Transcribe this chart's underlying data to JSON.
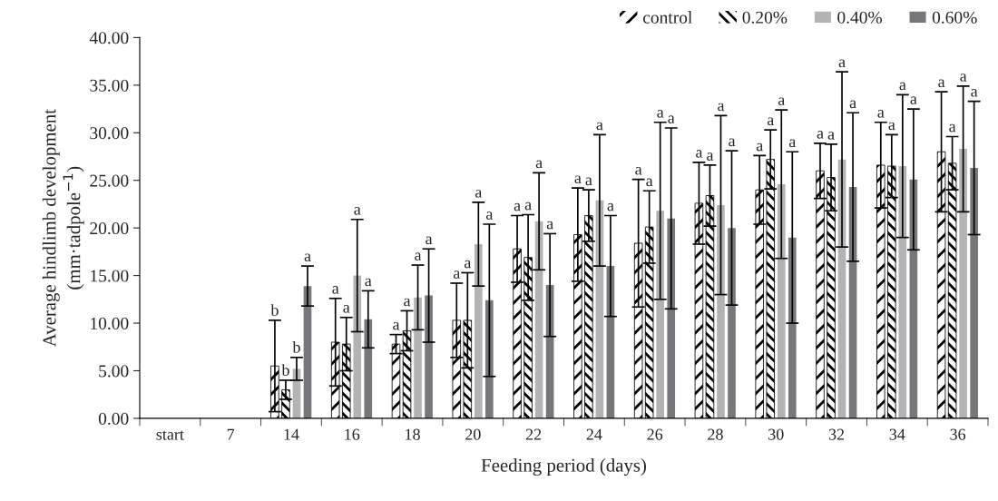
{
  "chart_data": {
    "type": "bar",
    "xlabel": "Feeding period (days)",
    "ylabel": "Average hindlimb development\n(mm·tadpole$^{−1}$)",
    "categories": [
      "start",
      "7",
      "14",
      "16",
      "18",
      "20",
      "22",
      "24",
      "26",
      "28",
      "30",
      "32",
      "34",
      "36"
    ],
    "series": [
      {
        "name": "control",
        "color": "#000000",
        "values": [
          null,
          null,
          5.5,
          8.0,
          7.8,
          10.3,
          17.8,
          19.3,
          18.4,
          22.6,
          24.0,
          26.0,
          26.6,
          28.0
        ],
        "errors": [
          null,
          null,
          4.8,
          4.6,
          1.0,
          3.9,
          3.5,
          4.9,
          6.7,
          4.3,
          3.6,
          2.9,
          4.5,
          6.3
        ]
      },
      {
        "name": "0.20%",
        "color": "#000000",
        "values": [
          null,
          null,
          3.0,
          7.8,
          9.2,
          10.3,
          16.9,
          21.3,
          20.1,
          23.4,
          27.2,
          25.3,
          26.5,
          26.8
        ],
        "errors": [
          null,
          null,
          1.0,
          2.8,
          2.1,
          5.0,
          4.5,
          2.7,
          3.8,
          3.2,
          3.1,
          3.5,
          3.3,
          2.8
        ]
      },
      {
        "name": "0.40%",
        "color": "#b3b3b5",
        "values": [
          null,
          null,
          5.2,
          15.0,
          12.7,
          18.3,
          20.7,
          22.9,
          21.8,
          22.4,
          24.6,
          27.2,
          26.5,
          28.3
        ],
        "errors": [
          null,
          null,
          1.2,
          5.9,
          3.4,
          4.4,
          5.1,
          6.9,
          9.3,
          9.4,
          7.8,
          9.2,
          7.5,
          6.6
        ]
      },
      {
        "name": "0.60%",
        "color": "#77777b",
        "values": [
          null,
          null,
          13.9,
          10.4,
          12.9,
          12.4,
          14.0,
          16.0,
          21.0,
          20.0,
          19.0,
          24.3,
          25.1,
          26.3
        ],
        "errors": [
          null,
          null,
          2.1,
          3.0,
          4.9,
          8.0,
          5.4,
          5.3,
          9.5,
          8.1,
          9.0,
          7.8,
          7.4,
          7.0
        ]
      }
    ],
    "annotations": [
      "b",
      "b",
      "b",
      "a",
      "a",
      "a",
      "a",
      "a",
      "a",
      "a",
      "a",
      "a",
      "a",
      "a",
      "a",
      "a",
      "a",
      "a",
      "a",
      "a",
      "a",
      "a",
      "a",
      "a",
      "a",
      "a",
      "a",
      "a",
      "a",
      "a",
      "a",
      "a",
      "a",
      "a",
      "a",
      "a",
      "a",
      "a",
      "a",
      "a",
      "a",
      "a",
      "a",
      "a",
      "a",
      "a",
      "a",
      "a"
    ],
    "ylim": [
      0,
      40
    ],
    "yticks": [
      {
        "value": 0,
        "label": "0.00"
      },
      {
        "value": 5,
        "label": "5.00"
      },
      {
        "value": 10,
        "label": "10.00"
      },
      {
        "value": 15,
        "label": "15.00"
      },
      {
        "value": 20,
        "label": "20.00"
      },
      {
        "value": 25,
        "label": "25.00"
      },
      {
        "value": 30,
        "label": "30.00"
      },
      {
        "value": 35,
        "label": "35.00"
      },
      {
        "value": 40,
        "label": "40.00"
      }
    ],
    "legend": "top right",
    "grid": false
  }
}
